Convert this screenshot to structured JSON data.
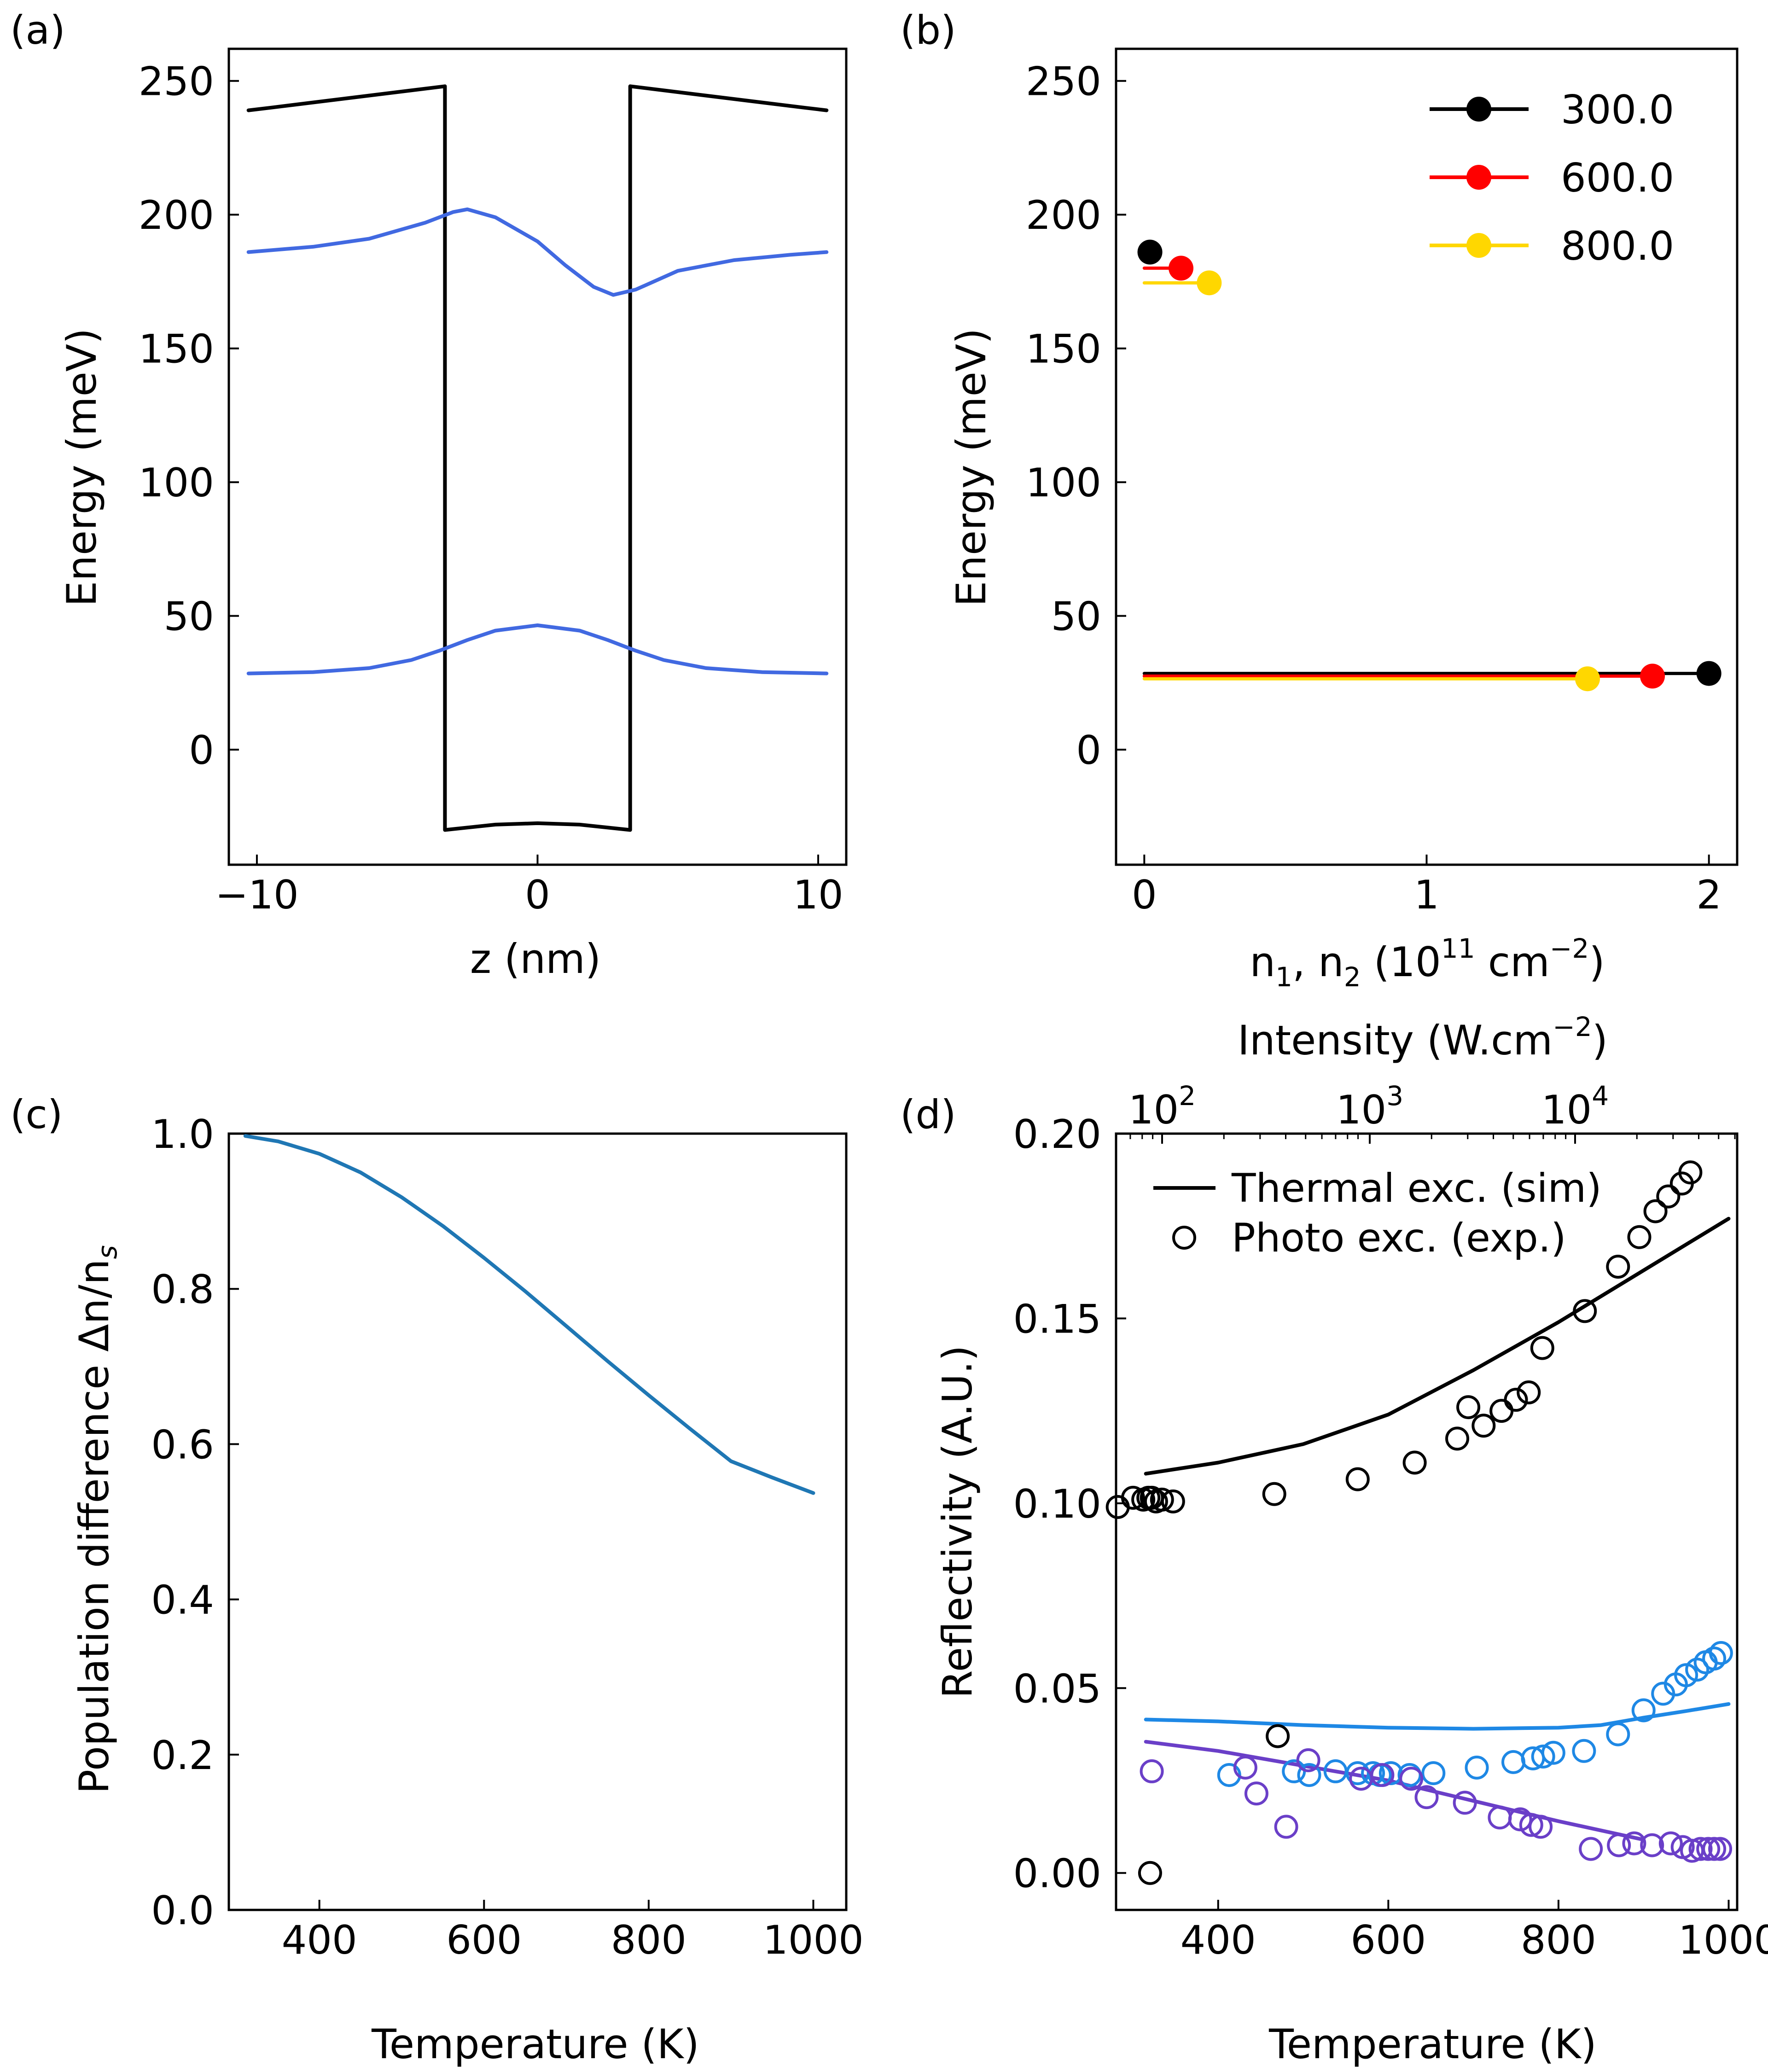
{
  "chart_data": [
    {
      "panel": "(a)",
      "type": "line",
      "xlabel": "z (nm)",
      "ylabel": "Energy (meV)",
      "xlim": [
        -11,
        11
      ],
      "ylim": [
        -43,
        262
      ],
      "xticks": [
        "−10",
        "0",
        "10"
      ],
      "yticks": [
        "0",
        "50",
        "100",
        "150",
        "200",
        "250"
      ],
      "series": [
        {
          "name": "potential",
          "color": "#000000",
          "x": [
            -10.3,
            -9.5,
            -3.3,
            -3.3,
            -1.5,
            0,
            1.5,
            3.3,
            3.3,
            9.5,
            10.3
          ],
          "y": [
            239,
            240,
            248,
            -30,
            -28,
            -27.5,
            -28,
            -30,
            248,
            240,
            239
          ]
        },
        {
          "name": "state-2",
          "color": "#4169E1",
          "x": [
            -10.3,
            -8,
            -6,
            -4,
            -3,
            -2.5,
            -1.5,
            0,
            1,
            2,
            2.7,
            3.5,
            5,
            7,
            9,
            10.3
          ],
          "y": [
            186,
            188,
            191,
            197,
            201,
            202,
            199,
            190,
            181,
            173,
            170,
            172,
            179,
            183,
            185,
            186
          ]
        },
        {
          "name": "state-1",
          "color": "#4169E1",
          "x": [
            -10.3,
            -8,
            -6,
            -4.5,
            -3.5,
            -2.5,
            -1.5,
            0,
            1.5,
            2.5,
            3.5,
            4.5,
            6,
            8,
            10.3
          ],
          "y": [
            28.5,
            29,
            30.5,
            33.5,
            37,
            41,
            44.5,
            46.5,
            44.5,
            41,
            37,
            33.5,
            30.5,
            29,
            28.5
          ]
        }
      ]
    },
    {
      "panel": "(b)",
      "type": "line",
      "xlabel": "n₁, n₂ (10¹¹ cm⁻²)",
      "xlabel_parts": [
        "n",
        "1",
        ", n",
        "2",
        " (10",
        "11",
        " cm",
        "−2",
        ")"
      ],
      "ylabel": "Energy (meV)",
      "xlim": [
        -0.1,
        2.1
      ],
      "ylim": [
        -43,
        262
      ],
      "xticks": [
        "0",
        "1",
        "2"
      ],
      "yticks": [
        "0",
        "50",
        "100",
        "150",
        "200",
        "250"
      ],
      "legend": {
        "position": "top-right",
        "entries": [
          "300.0",
          "600.0",
          "800.0"
        ]
      },
      "series": [
        {
          "name": "300.0",
          "color": "#000000",
          "upper": {
            "x": [
              0,
              0.02
            ],
            "y": [
              186,
              186
            ]
          },
          "lower": {
            "x": [
              0,
              2.0
            ],
            "y": [
              28.5,
              28.5
            ]
          }
        },
        {
          "name": "600.0",
          "color": "#FF0000",
          "upper": {
            "x": [
              0,
              0.13
            ],
            "y": [
              180,
              180
            ]
          },
          "lower": {
            "x": [
              0,
              1.8
            ],
            "y": [
              27.5,
              27.5
            ]
          }
        },
        {
          "name": "800.0",
          "color": "#FFD700",
          "upper": {
            "x": [
              0,
              0.23
            ],
            "y": [
              174.5,
              174.5
            ]
          },
          "lower": {
            "x": [
              0,
              1.57
            ],
            "y": [
              26.5,
              26.5
            ]
          }
        }
      ]
    },
    {
      "panel": "(c)",
      "type": "line",
      "xlabel": "Temperature (K)",
      "ylabel": "Population difference Δn/n",
      "ylabel_sub": "s",
      "xlim": [
        290,
        1040
      ],
      "ylim": [
        0.0,
        1.0
      ],
      "xticks": [
        "400",
        "600",
        "800",
        "1000"
      ],
      "yticks": [
        "0.0",
        "0.2",
        "0.4",
        "0.6",
        "0.8",
        "1.0"
      ],
      "series": [
        {
          "name": "Δn/ns",
          "color": "#1F77B4",
          "x": [
            310,
            350,
            400,
            450,
            500,
            550,
            600,
            650,
            700,
            750,
            800,
            850,
            900,
            950,
            1000
          ],
          "y": [
            0.997,
            0.99,
            0.974,
            0.95,
            0.918,
            0.881,
            0.84,
            0.797,
            0.752,
            0.707,
            0.663,
            0.62,
            0.578,
            0.557,
            0.537
          ]
        }
      ]
    },
    {
      "panel": "(d)",
      "type": "scatter",
      "xlabel": "Temperature (K)",
      "ylabel": "Reflectivity (A.U.)",
      "top_xlabel": "Intensity (W.cm⁻²)",
      "top_xlabel_parts": [
        "Intensity (W.cm",
        "−2",
        ")"
      ],
      "top_ticks": [
        {
          "base": "10",
          "exp": "2"
        },
        {
          "base": "10",
          "exp": "3"
        },
        {
          "base": "10",
          "exp": "4"
        }
      ],
      "xlim": [
        280,
        1010
      ],
      "ylim": [
        -0.01,
        0.2
      ],
      "xticks": [
        "400",
        "600",
        "800",
        "1000"
      ],
      "yticks": [
        "0.00",
        "0.05",
        "0.10",
        "0.15",
        "0.20"
      ],
      "legend": {
        "position": "top-left",
        "entries": [
          "Thermal exc. (sim)",
          "Photo exc. (exp.)"
        ]
      },
      "lines": [
        {
          "name": "sim-black",
          "color": "#000000",
          "x": [
            315,
            400,
            500,
            600,
            700,
            800,
            900,
            1000
          ],
          "y": [
            0.108,
            0.111,
            0.116,
            0.124,
            0.136,
            0.149,
            0.163,
            0.177
          ]
        },
        {
          "name": "sim-blue",
          "color": "#1E88E5",
          "x": [
            315,
            400,
            500,
            600,
            700,
            800,
            850,
            900,
            950,
            1000
          ],
          "y": [
            0.0415,
            0.041,
            0.04,
            0.0393,
            0.039,
            0.0393,
            0.04,
            0.042,
            0.0438,
            0.0457
          ]
        },
        {
          "name": "sim-purple",
          "color": "#6A3FC8",
          "x": [
            315,
            400,
            500,
            600,
            700,
            800,
            900
          ],
          "y": [
            0.0355,
            0.033,
            0.029,
            0.025,
            0.0195,
            0.014,
            0.009
          ]
        }
      ],
      "points": [
        {
          "name": "exp-black",
          "color": "#000000",
          "x": [
            282,
            300,
            312,
            318,
            322,
            327,
            334,
            347,
            466,
            564,
            631,
            681,
            694,
            712,
            733,
            750,
            765,
            781,
            831,
            870,
            895,
            914,
            929,
            945,
            955
          ],
          "y": [
            0.099,
            0.1015,
            0.101,
            0.1015,
            0.1015,
            0.1005,
            0.101,
            0.1005,
            0.1025,
            0.1065,
            0.111,
            0.1175,
            0.126,
            0.121,
            0.125,
            0.128,
            0.13,
            0.142,
            0.152,
            0.164,
            0.172,
            0.179,
            0.183,
            0.1865,
            0.1895
          ]
        },
        {
          "name": "exp-black-low",
          "color": "#000000",
          "x": [
            320,
            470
          ],
          "y": [
            0.0,
            0.037
          ]
        },
        {
          "name": "exp-blue",
          "color": "#1E88E5",
          "x": [
            413,
            489,
            507,
            538,
            564,
            582,
            590,
            603,
            625,
            653,
            704,
            747,
            770,
            782,
            794,
            830,
            870,
            900,
            923,
            938,
            950,
            963,
            973,
            983,
            991
          ],
          "y": [
            0.0265,
            0.0275,
            0.0265,
            0.0275,
            0.027,
            0.027,
            0.0265,
            0.027,
            0.0265,
            0.027,
            0.0285,
            0.03,
            0.031,
            0.0315,
            0.0325,
            0.033,
            0.0375,
            0.044,
            0.0485,
            0.051,
            0.0535,
            0.055,
            0.057,
            0.058,
            0.0595
          ]
        },
        {
          "name": "exp-purple",
          "color": "#6A3FC8",
          "x": [
            322,
            432,
            445,
            480,
            506,
            568,
            593,
            627,
            645,
            690,
            731,
            755,
            768,
            779,
            838,
            871,
            889,
            910,
            932,
            946,
            957,
            967,
            976,
            983,
            990
          ],
          "y": [
            0.0275,
            0.0285,
            0.0215,
            0.0125,
            0.0305,
            0.0255,
            0.0265,
            0.0255,
            0.0205,
            0.019,
            0.015,
            0.0145,
            0.013,
            0.0125,
            0.0065,
            0.0075,
            0.008,
            0.0075,
            0.008,
            0.007,
            0.006,
            0.0065,
            0.0065,
            0.0065,
            0.0065
          ]
        }
      ]
    }
  ]
}
